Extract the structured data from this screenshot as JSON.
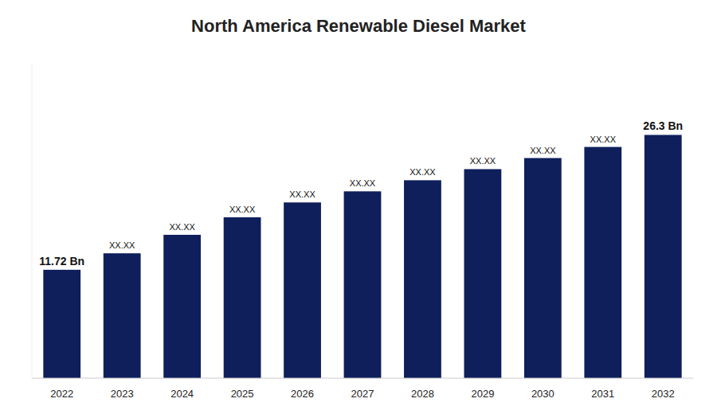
{
  "chart_data": {
    "type": "bar",
    "title": "North America Renewable Diesel Market",
    "categories": [
      "2022",
      "2023",
      "2024",
      "2025",
      "2026",
      "2027",
      "2028",
      "2029",
      "2030",
      "2031",
      "2032"
    ],
    "values": [
      11.72,
      13.5,
      15.5,
      17.4,
      19.0,
      20.2,
      21.4,
      22.6,
      23.8,
      25.0,
      26.3
    ],
    "value_labels": [
      "11.72 Bn",
      "XX.XX",
      "XX.XX",
      "XX.XX",
      "XX.XX",
      "XX.XX",
      "XX.XX",
      "XX.XX",
      "XX.XX",
      "XX.XX",
      "26.3 Bn"
    ],
    "data_labels": true,
    "color": "#0e1f5b",
    "ylim": [
      0,
      34
    ],
    "grid": false,
    "tick_labels": "x"
  }
}
